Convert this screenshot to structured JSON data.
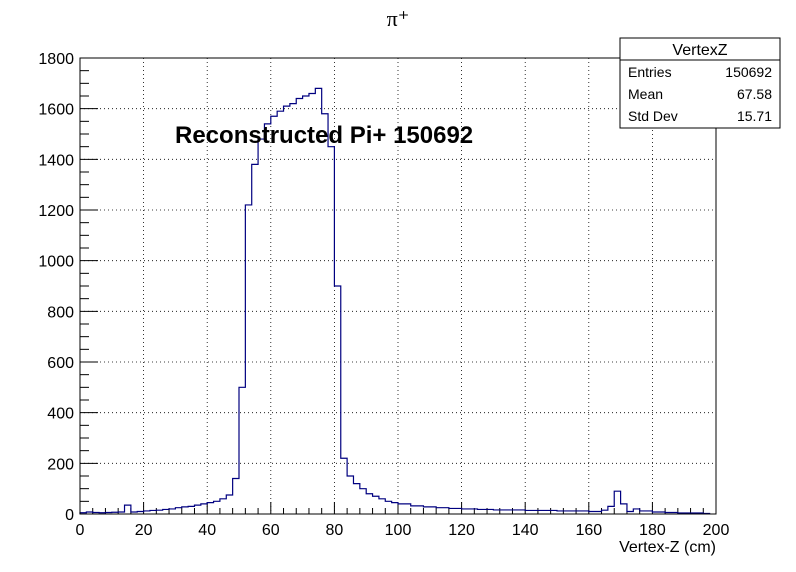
{
  "chart_data": {
    "type": "histogram",
    "title": "π⁺",
    "xlabel": "Vertex-Z (cm)",
    "ylabel": "",
    "xlim": [
      0,
      200
    ],
    "ylim": [
      0,
      1800
    ],
    "grid": true,
    "x_ticks": [
      0,
      20,
      40,
      60,
      80,
      100,
      120,
      140,
      160,
      180,
      200
    ],
    "y_ticks": [
      0,
      200,
      400,
      600,
      800,
      1000,
      1200,
      1400,
      1600,
      1800
    ],
    "annotation": "Reconstructed Pi+ 150692",
    "line_color": "#000080",
    "bin_width": 2,
    "bins_x": [
      0,
      2,
      4,
      6,
      8,
      10,
      12,
      14,
      16,
      18,
      20,
      22,
      24,
      26,
      28,
      30,
      32,
      34,
      36,
      38,
      40,
      42,
      44,
      46,
      48,
      50,
      52,
      54,
      56,
      58,
      60,
      62,
      64,
      66,
      68,
      70,
      72,
      74,
      76,
      78,
      80,
      82,
      84,
      86,
      88,
      90,
      92,
      94,
      96,
      98,
      100,
      104,
      108,
      112,
      116,
      120,
      125,
      130,
      140,
      150,
      160,
      164,
      166,
      168,
      170,
      172,
      174,
      176,
      180,
      184,
      188,
      196
    ],
    "bins_y": [
      5,
      8,
      6,
      5,
      6,
      7,
      8,
      35,
      8,
      10,
      12,
      14,
      15,
      18,
      20,
      25,
      28,
      30,
      35,
      40,
      45,
      50,
      60,
      75,
      140,
      500,
      1220,
      1380,
      1480,
      1540,
      1570,
      1590,
      1610,
      1620,
      1640,
      1650,
      1660,
      1680,
      1580,
      1450,
      900,
      220,
      150,
      120,
      100,
      80,
      70,
      60,
      50,
      45,
      40,
      32,
      28,
      25,
      22,
      20,
      18,
      16,
      14,
      12,
      10,
      15,
      30,
      90,
      40,
      10,
      20,
      12,
      8,
      6,
      4,
      2
    ]
  },
  "stats_box": {
    "title": "VertexZ",
    "rows": [
      {
        "label": "Entries",
        "value": "150692"
      },
      {
        "label": "Mean",
        "value": "67.58"
      },
      {
        "label": "Std Dev",
        "value": "15.71"
      }
    ]
  }
}
